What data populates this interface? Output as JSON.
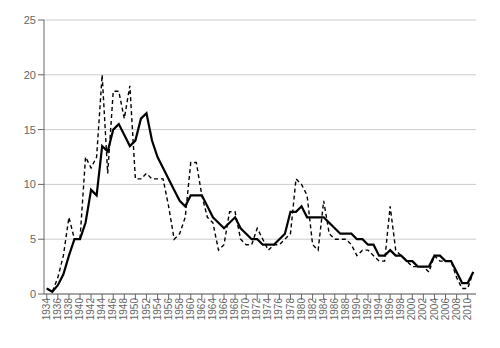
{
  "chart_data": {
    "type": "line",
    "x": [
      1934,
      1935,
      1936,
      1937,
      1938,
      1939,
      1940,
      1941,
      1942,
      1943,
      1944,
      1945,
      1946,
      1947,
      1948,
      1949,
      1950,
      1951,
      1952,
      1953,
      1954,
      1955,
      1956,
      1957,
      1958,
      1959,
      1960,
      1961,
      1962,
      1963,
      1964,
      1965,
      1966,
      1967,
      1968,
      1969,
      1970,
      1971,
      1972,
      1973,
      1974,
      1975,
      1976,
      1977,
      1978,
      1979,
      1980,
      1981,
      1982,
      1983,
      1984,
      1985,
      1986,
      1987,
      1988,
      1989,
      1990,
      1991,
      1992,
      1993,
      1994,
      1995,
      1996,
      1997,
      1998,
      1999,
      2000,
      2001,
      2002,
      2003,
      2004,
      2005,
      2006,
      2007,
      2008,
      2009,
      2010,
      2011
    ],
    "series": [
      {
        "color": "#000000",
        "line_style": "solid",
        "values": [
          0.5,
          0.2,
          0.8,
          1.8,
          3.5,
          5.0,
          5.0,
          6.5,
          9.5,
          9.0,
          13.5,
          13.0,
          15.0,
          15.5,
          14.5,
          13.5,
          14.0,
          16.0,
          16.5,
          14.0,
          12.5,
          11.5,
          10.5,
          9.5,
          8.5,
          8.0,
          9.0,
          9.0,
          9.0,
          8.0,
          7.0,
          6.5,
          6.0,
          6.5,
          7.0,
          6.0,
          5.5,
          5.0,
          5.0,
          4.5,
          4.5,
          4.5,
          5.0,
          5.5,
          7.5,
          7.5,
          8.0,
          7.0,
          7.0,
          7.0,
          7.0,
          6.5,
          6.0,
          5.5,
          5.5,
          5.5,
          5.0,
          5.0,
          4.5,
          4.5,
          3.5,
          3.5,
          4.0,
          3.5,
          3.5,
          3.0,
          3.0,
          2.5,
          2.5,
          2.5,
          3.5,
          3.5,
          3.0,
          3.0,
          2.0,
          1.0,
          1.0,
          2.0
        ]
      },
      {
        "color": "#000000",
        "line_style": "dashed",
        "values": [
          0.5,
          0.2,
          1.5,
          3.5,
          7.0,
          5.0,
          5.0,
          12.5,
          11.5,
          12.5,
          20.0,
          11.0,
          18.5,
          18.5,
          16.0,
          19.0,
          10.5,
          10.5,
          11.0,
          10.5,
          10.5,
          10.5,
          8.0,
          5.0,
          5.5,
          7.0,
          12.0,
          12.0,
          9.0,
          7.0,
          6.5,
          4.0,
          4.5,
          7.5,
          7.5,
          5.0,
          4.5,
          4.5,
          6.0,
          5.0,
          4.0,
          4.5,
          4.5,
          5.0,
          5.5,
          10.5,
          10.0,
          9.0,
          4.5,
          4.0,
          8.5,
          5.5,
          5.0,
          5.0,
          5.0,
          4.5,
          3.5,
          4.0,
          4.0,
          3.5,
          3.0,
          3.0,
          8.0,
          4.0,
          3.5,
          3.0,
          2.5,
          2.5,
          2.5,
          2.0,
          3.5,
          3.0,
          3.0,
          3.0,
          1.5,
          0.5,
          0.5,
          2.0
        ]
      }
    ],
    "xlim": [
      1933.5,
      2011.5
    ],
    "xticks": [
      1934,
      1936,
      1938,
      1940,
      1942,
      1944,
      1946,
      1948,
      1950,
      1952,
      1954,
      1956,
      1958,
      1960,
      1962,
      1964,
      1966,
      1968,
      1970,
      1972,
      1974,
      1976,
      1978,
      1980,
      1982,
      1984,
      1986,
      1988,
      1990,
      1992,
      1994,
      1996,
      1998,
      2000,
      2002,
      2004,
      2006,
      2008,
      2010
    ],
    "ylim": [
      0,
      25
    ],
    "yticks": [
      0,
      5,
      10,
      15,
      20,
      25
    ],
    "grid": true
  }
}
